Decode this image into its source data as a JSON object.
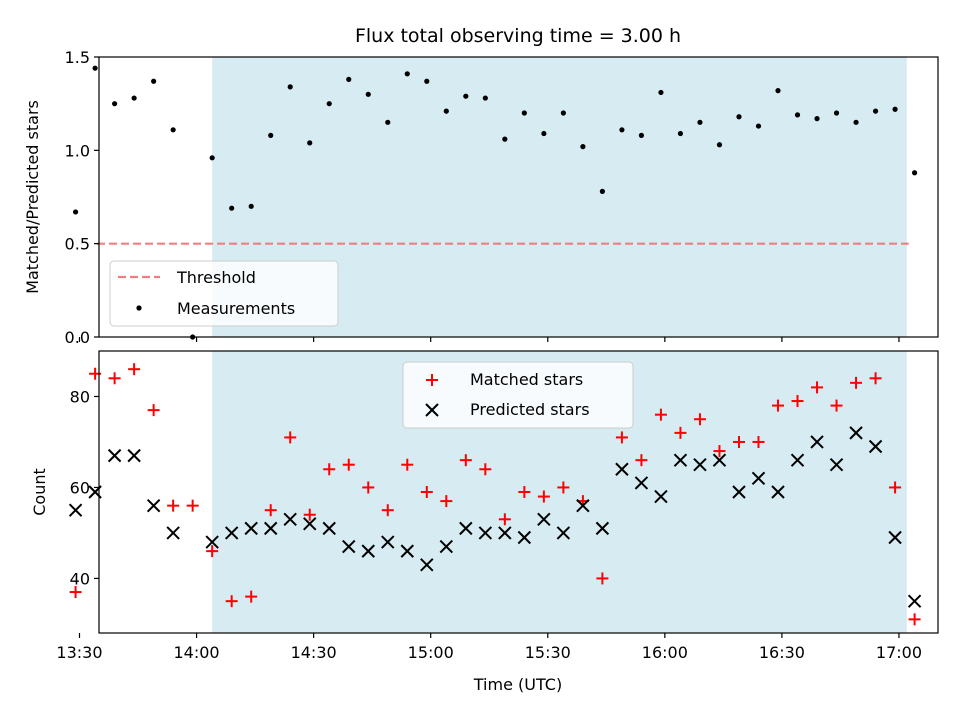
{
  "chart_data": [
    {
      "type": "scatter",
      "title": "Flux total observing time = 3.00 h",
      "ylabel": "Matched/Predicted stars",
      "xlabel": "",
      "xlim": [
        815,
        1030
      ],
      "ylim": [
        0.0,
        1.5
      ],
      "y_ticks": [
        0.0,
        0.5,
        1.0,
        1.5
      ],
      "y_tick_labels": [
        "0.0",
        "0.5",
        "1.0",
        "1.5"
      ],
      "shaded_span": {
        "x_start": 844.0,
        "x_end": 1022.0,
        "color": "#add8e6"
      },
      "legend": {
        "position": "lower-left",
        "entries": [
          "Threshold",
          "Measurements"
        ]
      },
      "colors": {
        "threshold": "#f08080",
        "measurements": "#000000",
        "shade": "#add8e6"
      },
      "series": [
        {
          "name": "Threshold",
          "kind": "line",
          "x": [
            814.5,
            1022.5
          ],
          "y": [
            0.5,
            0.5
          ]
        },
        {
          "name": "Measurements",
          "kind": "scatter",
          "x": [
            809,
            814,
            819,
            824,
            829,
            834,
            839,
            844,
            849,
            854,
            859,
            864,
            869,
            874,
            879,
            884,
            889,
            894,
            899,
            904,
            909,
            914,
            919,
            924,
            929,
            934,
            939,
            944,
            949,
            954,
            959,
            964,
            969,
            974,
            979,
            984,
            989,
            994,
            999,
            1004,
            1009,
            1014,
            1019,
            1024
          ],
          "y": [
            0.67,
            1.44,
            1.25,
            1.28,
            1.37,
            1.11,
            0.0,
            0.96,
            0.69,
            0.7,
            1.08,
            1.34,
            1.04,
            1.25,
            1.38,
            1.3,
            1.15,
            1.41,
            1.37,
            1.21,
            1.29,
            1.28,
            1.06,
            1.2,
            1.09,
            1.2,
            1.02,
            0.78,
            1.11,
            1.08,
            1.31,
            1.09,
            1.15,
            1.03,
            1.18,
            1.13,
            1.32,
            1.19,
            1.17,
            1.2,
            1.15,
            1.21,
            1.22,
            0.88
          ]
        }
      ]
    },
    {
      "type": "scatter",
      "title": "",
      "ylabel": "Count",
      "xlabel": "Time (UTC)",
      "xlim": [
        815,
        1030
      ],
      "ylim": [
        28,
        90
      ],
      "y_ticks": [
        40,
        60,
        80
      ],
      "y_tick_labels": [
        "40",
        "60",
        "80"
      ],
      "x_ticks": [
        810,
        840,
        870,
        900,
        930,
        960,
        990,
        1020
      ],
      "x_tick_labels": [
        "13:30",
        "14:00",
        "14:30",
        "15:00",
        "15:30",
        "16:00",
        "16:30",
        "17:00"
      ],
      "shaded_span": {
        "x_start": 844.0,
        "x_end": 1022.0,
        "color": "#add8e6"
      },
      "legend": {
        "position": "upper-center",
        "entries": [
          "Matched stars",
          "Predicted stars"
        ]
      },
      "colors": {
        "matched": "#ff0000",
        "predicted": "#000000",
        "shade": "#add8e6"
      },
      "series": [
        {
          "name": "Matched stars",
          "marker": "+",
          "x": [
            809,
            814,
            819,
            824,
            829,
            834,
            839,
            844,
            849,
            854,
            859,
            864,
            869,
            874,
            879,
            884,
            889,
            894,
            899,
            904,
            909,
            914,
            919,
            924,
            929,
            934,
            939,
            944,
            949,
            954,
            959,
            964,
            969,
            974,
            979,
            984,
            989,
            994,
            999,
            1004,
            1009,
            1014,
            1019,
            1024
          ],
          "y": [
            37,
            85,
            84,
            86,
            77,
            56,
            56,
            46,
            35,
            36,
            55,
            71,
            54,
            64,
            65,
            60,
            55,
            65,
            59,
            57,
            66,
            64,
            53,
            59,
            58,
            60,
            57,
            40,
            71,
            66,
            76,
            72,
            75,
            68,
            70,
            70,
            78,
            79,
            82,
            78,
            83,
            84,
            60,
            31
          ]
        },
        {
          "name": "Predicted stars",
          "marker": "x",
          "x": [
            809,
            814,
            819,
            824,
            829,
            834,
            844,
            849,
            854,
            859,
            864,
            869,
            874,
            879,
            884,
            889,
            894,
            899,
            904,
            909,
            914,
            919,
            924,
            929,
            934,
            939,
            944,
            949,
            954,
            959,
            964,
            969,
            974,
            979,
            984,
            989,
            994,
            999,
            1004,
            1009,
            1014,
            1019,
            1024
          ],
          "y": [
            55,
            59,
            67,
            67,
            56,
            50,
            48,
            50,
            51,
            51,
            53,
            52,
            51,
            47,
            46,
            48,
            46,
            43,
            47,
            51,
            50,
            50,
            49,
            53,
            50,
            56,
            51,
            64,
            61,
            58,
            66,
            65,
            66,
            59,
            62,
            59,
            66,
            70,
            65,
            72,
            69,
            49,
            35
          ]
        }
      ]
    }
  ]
}
